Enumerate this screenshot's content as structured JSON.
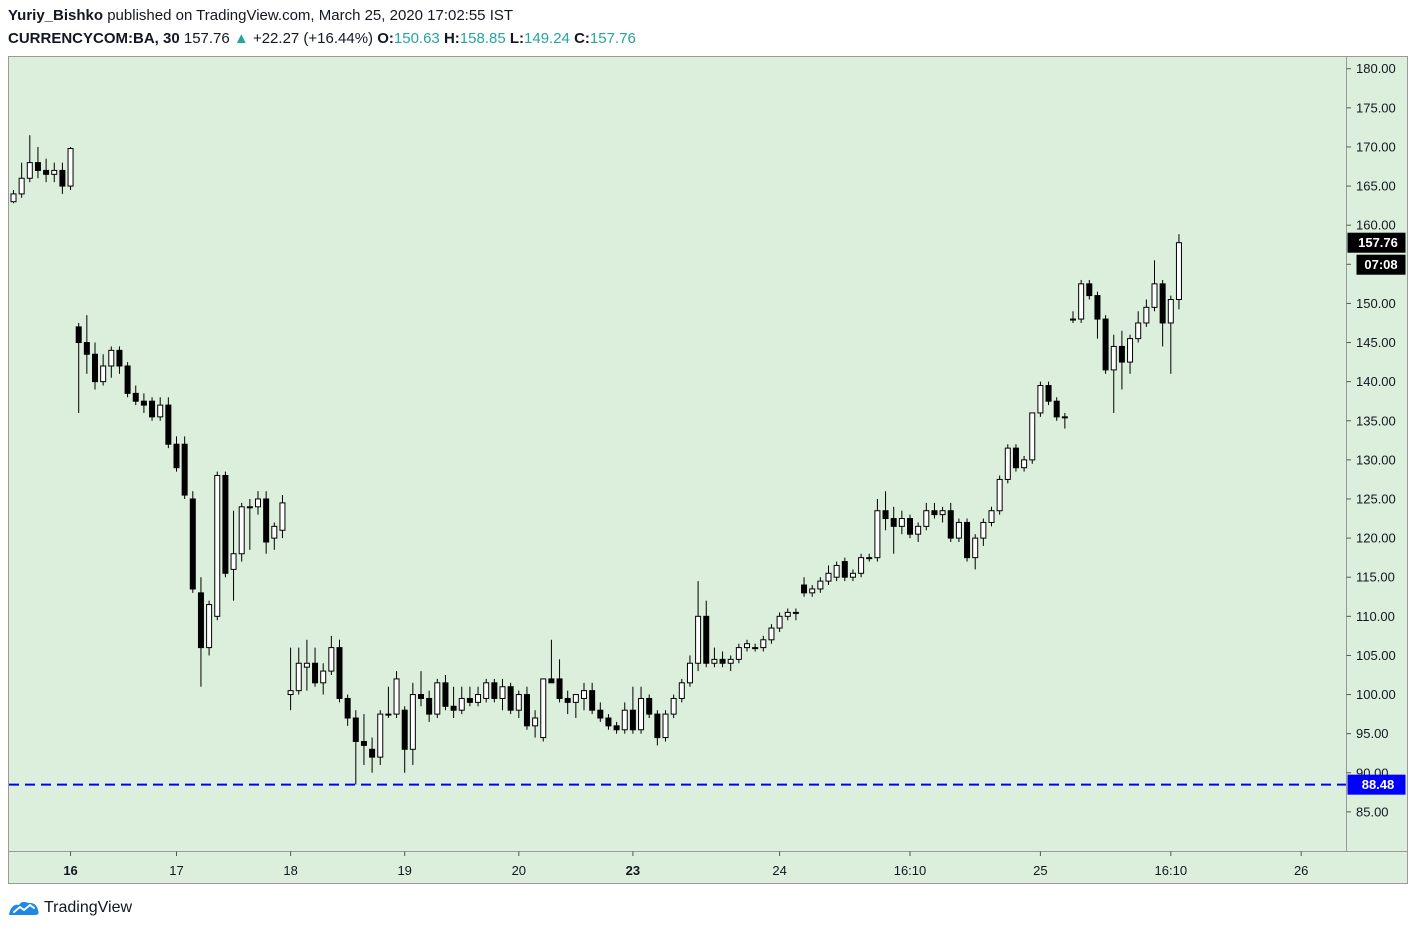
{
  "header": {
    "author": "Yuriy_Bishko",
    "published_text": "published on TradingView.com, March 25, 2020 17:02:55 IST",
    "symbol": "CURRENCYCOM:BA, 30",
    "last": "157.76",
    "change": "+22.27 (+16.44%)",
    "o_label": "O:",
    "o_value": "150.63",
    "h_label": "H:",
    "h_value": "158.85",
    "l_label": "L:",
    "l_value": "149.24",
    "c_label": "C:",
    "c_value": "157.76"
  },
  "footer": {
    "brand": "TradingView"
  },
  "colors": {
    "plot_bg": "#dcefdc",
    "up_body": "#ffffff",
    "down_body": "#000000",
    "hline": "#0000ff",
    "arrow": "#26a69a"
  },
  "chart_data": {
    "type": "candlestick",
    "ylim": [
      80,
      181.5
    ],
    "yticks": [
      85,
      90,
      95,
      100,
      105,
      110,
      115,
      120,
      125,
      130,
      135,
      140,
      145,
      150,
      155,
      160,
      165,
      170,
      175,
      180
    ],
    "ytick_labels": [
      "85.00",
      "90.00",
      "95.00",
      "100.00",
      "105.00",
      "110.00",
      "115.00",
      "120.00",
      "125.00",
      "130.00",
      "135.00",
      "140.00",
      "145.00",
      "150.00",
      "155.00",
      "160.00",
      "165.00",
      "170.00",
      "175.00",
      "180.00"
    ],
    "xticks": [
      {
        "label": "16",
        "bold": true,
        "i": 7
      },
      {
        "label": "17",
        "bold": false,
        "i": 20
      },
      {
        "label": "18",
        "bold": false,
        "i": 34
      },
      {
        "label": "19",
        "bold": false,
        "i": 48
      },
      {
        "label": "20",
        "bold": false,
        "i": 62
      },
      {
        "label": "23",
        "bold": true,
        "i": 76
      },
      {
        "label": "24",
        "bold": false,
        "i": 94
      },
      {
        "label": "16:10",
        "bold": false,
        "i": 110
      },
      {
        "label": "25",
        "bold": false,
        "i": 126
      },
      {
        "label": "16:10",
        "bold": false,
        "i": 142
      },
      {
        "label": "26",
        "bold": false,
        "i": 158
      }
    ],
    "price_label": "157.76",
    "countdown_label": "07:08",
    "hline": {
      "value": 88.48,
      "label": "88.48"
    },
    "candles": [
      {
        "i": 0,
        "o": 163,
        "h": 164.5,
        "l": 162.8,
        "c": 164
      },
      {
        "i": 1,
        "o": 164,
        "h": 168,
        "l": 163.5,
        "c": 166
      },
      {
        "i": 2,
        "o": 166,
        "h": 171.5,
        "l": 165.5,
        "c": 168
      },
      {
        "i": 3,
        "o": 168,
        "h": 170,
        "l": 166,
        "c": 167
      },
      {
        "i": 4,
        "o": 167,
        "h": 168.5,
        "l": 165.5,
        "c": 166.5
      },
      {
        "i": 5,
        "o": 166.5,
        "h": 168,
        "l": 165.5,
        "c": 167
      },
      {
        "i": 6,
        "o": 167,
        "h": 168,
        "l": 164,
        "c": 165
      },
      {
        "i": 7,
        "o": 165,
        "h": 170,
        "l": 164.5,
        "c": 169.8
      },
      {
        "i": 8,
        "o": 147,
        "h": 147.5,
        "l": 136,
        "c": 145
      },
      {
        "i": 9,
        "o": 145,
        "h": 148.5,
        "l": 141,
        "c": 143.5
      },
      {
        "i": 10,
        "o": 143.5,
        "h": 145,
        "l": 139,
        "c": 140
      },
      {
        "i": 11,
        "o": 140,
        "h": 143.5,
        "l": 139.5,
        "c": 142
      },
      {
        "i": 12,
        "o": 142,
        "h": 144.5,
        "l": 140.5,
        "c": 144
      },
      {
        "i": 13,
        "o": 144,
        "h": 144.5,
        "l": 141,
        "c": 142
      },
      {
        "i": 14,
        "o": 142,
        "h": 142.5,
        "l": 138,
        "c": 138.5
      },
      {
        "i": 15,
        "o": 138.5,
        "h": 139.5,
        "l": 137,
        "c": 137.5
      },
      {
        "i": 16,
        "o": 137.5,
        "h": 138.5,
        "l": 136,
        "c": 137
      },
      {
        "i": 17,
        "o": 137.5,
        "h": 138,
        "l": 135,
        "c": 135.5
      },
      {
        "i": 18,
        "o": 135.5,
        "h": 138,
        "l": 135,
        "c": 137
      },
      {
        "i": 19,
        "o": 137,
        "h": 138,
        "l": 131.5,
        "c": 132
      },
      {
        "i": 20,
        "o": 132,
        "h": 133,
        "l": 128.5,
        "c": 129
      },
      {
        "i": 21,
        "o": 132,
        "h": 133,
        "l": 125,
        "c": 125.5
      },
      {
        "i": 22,
        "o": 125,
        "h": 126,
        "l": 113,
        "c": 113.5
      },
      {
        "i": 23,
        "o": 113,
        "h": 115,
        "l": 101,
        "c": 106
      },
      {
        "i": 24,
        "o": 106,
        "h": 112,
        "l": 105,
        "c": 111.5
      },
      {
        "i": 25,
        "o": 110,
        "h": 128.5,
        "l": 109.5,
        "c": 128
      },
      {
        "i": 26,
        "o": 128,
        "h": 128.5,
        "l": 115,
        "c": 115.5
      },
      {
        "i": 27,
        "o": 116,
        "h": 123.5,
        "l": 112,
        "c": 118
      },
      {
        "i": 28,
        "o": 118,
        "h": 124.5,
        "l": 117,
        "c": 124
      },
      {
        "i": 29,
        "o": 124,
        "h": 125,
        "l": 118.5,
        "c": 124
      },
      {
        "i": 30,
        "o": 124,
        "h": 126,
        "l": 123,
        "c": 125
      },
      {
        "i": 31,
        "o": 125,
        "h": 126,
        "l": 118,
        "c": 119.5
      },
      {
        "i": 32,
        "o": 120,
        "h": 122,
        "l": 118.5,
        "c": 121.5
      },
      {
        "i": 33,
        "o": 121,
        "h": 125.5,
        "l": 120,
        "c": 124.5
      },
      {
        "i": 34,
        "o": 100,
        "h": 106,
        "l": 98,
        "c": 100.5
      },
      {
        "i": 35,
        "o": 100.5,
        "h": 106,
        "l": 100,
        "c": 104
      },
      {
        "i": 36,
        "o": 103.5,
        "h": 107,
        "l": 100.5,
        "c": 104
      },
      {
        "i": 37,
        "o": 104,
        "h": 106,
        "l": 101,
        "c": 101.5
      },
      {
        "i": 38,
        "o": 101.5,
        "h": 104,
        "l": 100,
        "c": 103
      },
      {
        "i": 39,
        "o": 103,
        "h": 107.5,
        "l": 102.5,
        "c": 106
      },
      {
        "i": 40,
        "o": 106,
        "h": 107,
        "l": 99,
        "c": 99.5
      },
      {
        "i": 41,
        "o": 99.5,
        "h": 100,
        "l": 96,
        "c": 97
      },
      {
        "i": 42,
        "o": 97,
        "h": 98,
        "l": 88.5,
        "c": 94
      },
      {
        "i": 43,
        "o": 94,
        "h": 97.5,
        "l": 91,
        "c": 93.5
      },
      {
        "i": 44,
        "o": 93,
        "h": 94.5,
        "l": 90,
        "c": 92
      },
      {
        "i": 45,
        "o": 92,
        "h": 98,
        "l": 91,
        "c": 97.5
      },
      {
        "i": 46,
        "o": 97.5,
        "h": 101,
        "l": 97,
        "c": 97.5
      },
      {
        "i": 47,
        "o": 97.5,
        "h": 103,
        "l": 97,
        "c": 102
      },
      {
        "i": 48,
        "o": 98,
        "h": 98.5,
        "l": 90,
        "c": 93
      },
      {
        "i": 49,
        "o": 93,
        "h": 101.5,
        "l": 91,
        "c": 100
      },
      {
        "i": 50,
        "o": 100,
        "h": 103,
        "l": 98.5,
        "c": 99.5
      },
      {
        "i": 51,
        "o": 99.5,
        "h": 100.5,
        "l": 96.5,
        "c": 97.5
      },
      {
        "i": 52,
        "o": 97.5,
        "h": 102,
        "l": 97,
        "c": 101.5
      },
      {
        "i": 53,
        "o": 101.5,
        "h": 102.5,
        "l": 98,
        "c": 98.5
      },
      {
        "i": 54,
        "o": 98.5,
        "h": 101,
        "l": 97,
        "c": 98
      },
      {
        "i": 55,
        "o": 98,
        "h": 101,
        "l": 97.5,
        "c": 99.5
      },
      {
        "i": 56,
        "o": 99.5,
        "h": 101,
        "l": 98.5,
        "c": 99
      },
      {
        "i": 57,
        "o": 99,
        "h": 101,
        "l": 98.5,
        "c": 100
      },
      {
        "i": 58,
        "o": 99.5,
        "h": 102,
        "l": 99,
        "c": 101.5
      },
      {
        "i": 59,
        "o": 101.5,
        "h": 102,
        "l": 99,
        "c": 99.5
      },
      {
        "i": 60,
        "o": 99.5,
        "h": 102,
        "l": 98,
        "c": 101
      },
      {
        "i": 61,
        "o": 101,
        "h": 101.5,
        "l": 97.5,
        "c": 98
      },
      {
        "i": 62,
        "o": 98,
        "h": 100.5,
        "l": 97,
        "c": 100
      },
      {
        "i": 63,
        "o": 100,
        "h": 101,
        "l": 95.5,
        "c": 96
      },
      {
        "i": 64,
        "o": 96,
        "h": 98,
        "l": 94.5,
        "c": 97
      },
      {
        "i": 65,
        "o": 94.5,
        "h": 102,
        "l": 94,
        "c": 102
      },
      {
        "i": 66,
        "o": 102,
        "h": 107,
        "l": 101.5,
        "c": 101.5
      },
      {
        "i": 67,
        "o": 102,
        "h": 104.5,
        "l": 99,
        "c": 99.5
      },
      {
        "i": 68,
        "o": 99.5,
        "h": 100.5,
        "l": 97.5,
        "c": 99
      },
      {
        "i": 69,
        "o": 99,
        "h": 100,
        "l": 97,
        "c": 100
      },
      {
        "i": 70,
        "o": 99.5,
        "h": 101.5,
        "l": 98,
        "c": 100.5
      },
      {
        "i": 71,
        "o": 100.5,
        "h": 101.5,
        "l": 97.5,
        "c": 98
      },
      {
        "i": 72,
        "o": 98,
        "h": 99,
        "l": 96.5,
        "c": 97
      },
      {
        "i": 73,
        "o": 97,
        "h": 97.5,
        "l": 95.5,
        "c": 96
      },
      {
        "i": 74,
        "o": 96,
        "h": 96.5,
        "l": 95,
        "c": 95.5
      },
      {
        "i": 75,
        "o": 95.5,
        "h": 99,
        "l": 95,
        "c": 98
      },
      {
        "i": 76,
        "o": 98,
        "h": 101,
        "l": 95,
        "c": 95.5
      },
      {
        "i": 77,
        "o": 95.5,
        "h": 101,
        "l": 95,
        "c": 99.5
      },
      {
        "i": 78,
        "o": 99.5,
        "h": 100,
        "l": 97,
        "c": 97.5
      },
      {
        "i": 79,
        "o": 97.5,
        "h": 98,
        "l": 93.5,
        "c": 94.5
      },
      {
        "i": 80,
        "o": 94.5,
        "h": 98,
        "l": 94,
        "c": 97.5
      },
      {
        "i": 81,
        "o": 97.5,
        "h": 100,
        "l": 97,
        "c": 99.5
      },
      {
        "i": 82,
        "o": 99.5,
        "h": 102,
        "l": 99,
        "c": 101.5
      },
      {
        "i": 83,
        "o": 101.5,
        "h": 105,
        "l": 101,
        "c": 104
      },
      {
        "i": 84,
        "o": 104,
        "h": 114.5,
        "l": 103,
        "c": 110
      },
      {
        "i": 85,
        "o": 110,
        "h": 112,
        "l": 103.5,
        "c": 104
      },
      {
        "i": 86,
        "o": 104,
        "h": 106,
        "l": 103.5,
        "c": 104.5
      },
      {
        "i": 87,
        "o": 104.5,
        "h": 105.5,
        "l": 103.5,
        "c": 104
      },
      {
        "i": 88,
        "o": 104,
        "h": 105,
        "l": 103,
        "c": 104.5
      },
      {
        "i": 89,
        "o": 104.5,
        "h": 106.5,
        "l": 104,
        "c": 106
      },
      {
        "i": 90,
        "o": 106,
        "h": 107,
        "l": 105.5,
        "c": 106.5
      },
      {
        "i": 91,
        "o": 106,
        "h": 106.5,
        "l": 105.5,
        "c": 106
      },
      {
        "i": 92,
        "o": 106,
        "h": 107.5,
        "l": 105.5,
        "c": 107
      },
      {
        "i": 93,
        "o": 107,
        "h": 109,
        "l": 106.5,
        "c": 108.5
      },
      {
        "i": 94,
        "o": 108.5,
        "h": 110.5,
        "l": 108,
        "c": 110
      },
      {
        "i": 95,
        "o": 110,
        "h": 111,
        "l": 109.5,
        "c": 110.5
      },
      {
        "i": 96,
        "o": 110.5,
        "h": 111,
        "l": 109.5,
        "c": 110.5
      },
      {
        "i": 97,
        "o": 114,
        "h": 115,
        "l": 112.5,
        "c": 113
      },
      {
        "i": 98,
        "o": 113,
        "h": 114,
        "l": 112.5,
        "c": 113.5
      },
      {
        "i": 99,
        "o": 113.5,
        "h": 115,
        "l": 113,
        "c": 114.5
      },
      {
        "i": 100,
        "o": 114.5,
        "h": 116.5,
        "l": 114,
        "c": 115.5
      },
      {
        "i": 101,
        "o": 115,
        "h": 117,
        "l": 114.5,
        "c": 116.5
      },
      {
        "i": 102,
        "o": 117,
        "h": 117.5,
        "l": 114.5,
        "c": 115
      },
      {
        "i": 103,
        "o": 115,
        "h": 116,
        "l": 114.5,
        "c": 115.5
      },
      {
        "i": 104,
        "o": 115.5,
        "h": 118,
        "l": 115,
        "c": 117.5
      },
      {
        "i": 105,
        "o": 117.5,
        "h": 118,
        "l": 117,
        "c": 117.5
      },
      {
        "i": 106,
        "o": 117.5,
        "h": 125,
        "l": 117,
        "c": 123.5
      },
      {
        "i": 107,
        "o": 123.5,
        "h": 126,
        "l": 121,
        "c": 122.5
      },
      {
        "i": 108,
        "o": 122.5,
        "h": 124,
        "l": 118,
        "c": 121.5
      },
      {
        "i": 109,
        "o": 121.5,
        "h": 123.5,
        "l": 120.5,
        "c": 122.5
      },
      {
        "i": 110,
        "o": 122.5,
        "h": 123,
        "l": 120,
        "c": 120.5
      },
      {
        "i": 111,
        "o": 120.5,
        "h": 122,
        "l": 119.5,
        "c": 121.5
      },
      {
        "i": 112,
        "o": 121.5,
        "h": 124.5,
        "l": 121,
        "c": 123.5
      },
      {
        "i": 113,
        "o": 123.5,
        "h": 124.5,
        "l": 122.5,
        "c": 123
      },
      {
        "i": 114,
        "o": 123,
        "h": 124,
        "l": 122,
        "c": 123.5
      },
      {
        "i": 115,
        "o": 123.5,
        "h": 124.5,
        "l": 119.5,
        "c": 120
      },
      {
        "i": 116,
        "o": 120,
        "h": 122.5,
        "l": 119.5,
        "c": 122
      },
      {
        "i": 117,
        "o": 122,
        "h": 122.5,
        "l": 117,
        "c": 117.5
      },
      {
        "i": 118,
        "o": 117.5,
        "h": 120.5,
        "l": 116,
        "c": 120
      },
      {
        "i": 119,
        "o": 120,
        "h": 122.5,
        "l": 119,
        "c": 122
      },
      {
        "i": 120,
        "o": 122,
        "h": 124,
        "l": 121.5,
        "c": 123.5
      },
      {
        "i": 121,
        "o": 123.5,
        "h": 128,
        "l": 123,
        "c": 127.5
      },
      {
        "i": 122,
        "o": 127.5,
        "h": 132,
        "l": 127,
        "c": 131.5
      },
      {
        "i": 123,
        "o": 131.5,
        "h": 132,
        "l": 128.5,
        "c": 129
      },
      {
        "i": 124,
        "o": 129,
        "h": 130.5,
        "l": 128.5,
        "c": 130
      },
      {
        "i": 125,
        "o": 130,
        "h": 136,
        "l": 129.5,
        "c": 136
      },
      {
        "i": 126,
        "o": 136,
        "h": 140,
        "l": 135.5,
        "c": 139.5
      },
      {
        "i": 127,
        "o": 139.5,
        "h": 140,
        "l": 137,
        "c": 137.5
      },
      {
        "i": 128,
        "o": 137.5,
        "h": 138,
        "l": 135,
        "c": 135.5
      },
      {
        "i": 129,
        "o": 135.5,
        "h": 136,
        "l": 134,
        "c": 135.5
      },
      {
        "i": 130,
        "o": 148,
        "h": 149,
        "l": 147.5,
        "c": 148
      },
      {
        "i": 131,
        "o": 148,
        "h": 153,
        "l": 147.5,
        "c": 152.5
      },
      {
        "i": 132,
        "o": 152.5,
        "h": 153,
        "l": 150.5,
        "c": 151
      },
      {
        "i": 133,
        "o": 151,
        "h": 151.5,
        "l": 145.5,
        "c": 148
      },
      {
        "i": 134,
        "o": 148,
        "h": 148.5,
        "l": 141,
        "c": 141.5
      },
      {
        "i": 135,
        "o": 141.5,
        "h": 146,
        "l": 136,
        "c": 144.5
      },
      {
        "i": 136,
        "o": 144.5,
        "h": 146.5,
        "l": 139,
        "c": 142.5
      },
      {
        "i": 137,
        "o": 142.5,
        "h": 146,
        "l": 141,
        "c": 145.5
      },
      {
        "i": 138,
        "o": 145.5,
        "h": 149,
        "l": 145,
        "c": 147.5
      },
      {
        "i": 139,
        "o": 147.5,
        "h": 150.5,
        "l": 147,
        "c": 149.5
      },
      {
        "i": 140,
        "o": 149.5,
        "h": 155.5,
        "l": 149,
        "c": 152.5
      },
      {
        "i": 141,
        "o": 152.5,
        "h": 153,
        "l": 144.5,
        "c": 147.5
      },
      {
        "i": 142,
        "o": 147.5,
        "h": 151,
        "l": 141,
        "c": 150.5
      },
      {
        "i": 143,
        "o": 150.5,
        "h": 158.85,
        "l": 149.24,
        "c": 157.76
      }
    ]
  }
}
